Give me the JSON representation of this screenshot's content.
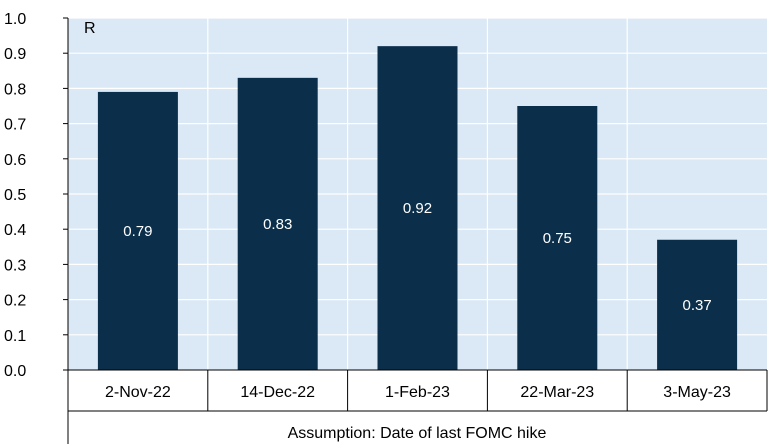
{
  "chart_data": {
    "type": "bar",
    "categories": [
      "2-Nov-22",
      "14-Dec-22",
      "1-Feb-23",
      "22-Mar-23",
      "3-May-23"
    ],
    "values": [
      0.79,
      0.83,
      0.92,
      0.75,
      0.37
    ],
    "data_labels": [
      "0.79",
      "0.83",
      "0.92",
      "0.75",
      "0.37"
    ],
    "unit_label": "R",
    "xlabel": "Assumption: Date of last FOMC hike",
    "ylabel": "",
    "ylim": [
      0,
      1.0
    ],
    "yticks": [
      "0.0",
      "0.1",
      "0.2",
      "0.3",
      "0.4",
      "0.5",
      "0.6",
      "0.7",
      "0.8",
      "0.9",
      "1.0"
    ],
    "grid": true,
    "colors": {
      "bar": "#0b2f4a",
      "plot_background": "#dbe8f5",
      "grid": "#ffffff",
      "data_label": "#ffffff"
    }
  }
}
